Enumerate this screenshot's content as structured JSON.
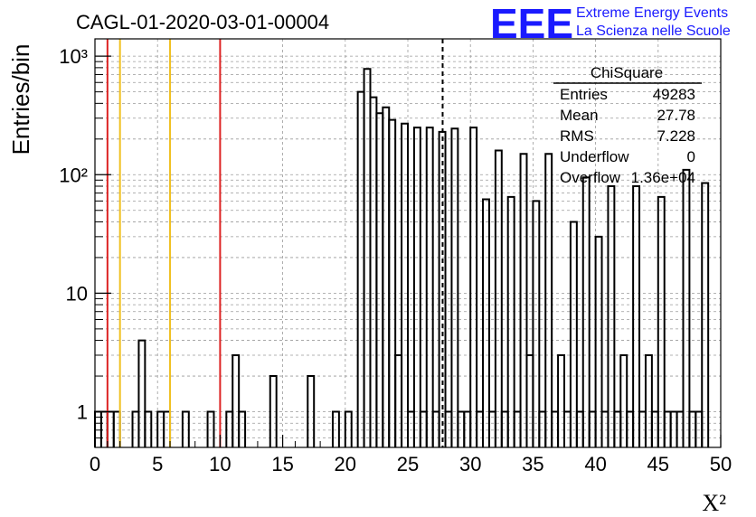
{
  "title": "CAGL-01-2020-03-01-00004",
  "logo": {
    "mark": "EEE",
    "line1": "Extreme Energy Events",
    "line2": "La Scienza nelle Scuole",
    "color": "#1a1aff"
  },
  "stats_box": {
    "title": "ChiSquare",
    "rows": [
      {
        "label": "Entries",
        "value": "49283"
      },
      {
        "label": "Mean",
        "value": "27.78"
      },
      {
        "label": "RMS",
        "value": "7.228"
      },
      {
        "label": "Underflow",
        "value": "0"
      },
      {
        "label": "Overflow",
        "value": "1.36e+04"
      }
    ]
  },
  "chart_data": {
    "type": "histogram",
    "title": "CAGL-01-2020-03-01-00004",
    "xlabel": "X²",
    "ylabel": "Entries/bin",
    "xlim": [
      0,
      50
    ],
    "ylim": [
      0.5,
      1400
    ],
    "yscale": "log",
    "bin_width": 0.5,
    "x_ticks": [
      0,
      5,
      10,
      15,
      20,
      25,
      30,
      35,
      40,
      45,
      50
    ],
    "y_ticks": [
      {
        "value": 1,
        "label": "1"
      },
      {
        "value": 10,
        "label": "10"
      },
      {
        "value": 100,
        "label": "10²"
      },
      {
        "value": 1000,
        "label": "10³"
      }
    ],
    "grid": true,
    "bins": [
      {
        "x": 0.0,
        "y": 1
      },
      {
        "x": 0.5,
        "y": 1
      },
      {
        "x": 1.0,
        "y": 1
      },
      {
        "x": 1.5,
        "y": 1
      },
      {
        "x": 3.0,
        "y": 1
      },
      {
        "x": 3.5,
        "y": 4
      },
      {
        "x": 4.0,
        "y": 1
      },
      {
        "x": 5.0,
        "y": 1
      },
      {
        "x": 5.5,
        "y": 1
      },
      {
        "x": 7.0,
        "y": 1
      },
      {
        "x": 9.0,
        "y": 1
      },
      {
        "x": 10.5,
        "y": 1
      },
      {
        "x": 11.0,
        "y": 3
      },
      {
        "x": 11.5,
        "y": 1
      },
      {
        "x": 14.0,
        "y": 2
      },
      {
        "x": 17.0,
        "y": 2
      },
      {
        "x": 19.0,
        "y": 1
      },
      {
        "x": 20.0,
        "y": 1
      },
      {
        "x": 21.0,
        "y": 500
      },
      {
        "x": 21.5,
        "y": 780
      },
      {
        "x": 22.0,
        "y": 450
      },
      {
        "x": 22.5,
        "y": 330
      },
      {
        "x": 23.0,
        "y": 370
      },
      {
        "x": 23.5,
        "y": 290
      },
      {
        "x": 24.0,
        "y": 3
      },
      {
        "x": 24.5,
        "y": 270
      },
      {
        "x": 25.0,
        "y": 1
      },
      {
        "x": 25.5,
        "y": 250
      },
      {
        "x": 26.0,
        "y": 1
      },
      {
        "x": 26.5,
        "y": 250
      },
      {
        "x": 27.0,
        "y": 1
      },
      {
        "x": 27.5,
        "y": 230
      },
      {
        "x": 28.0,
        "y": 1
      },
      {
        "x": 28.5,
        "y": 245
      },
      {
        "x": 29.0,
        "y": 1
      },
      {
        "x": 29.5,
        "y": 1
      },
      {
        "x": 30.0,
        "y": 250
      },
      {
        "x": 30.5,
        "y": 1
      },
      {
        "x": 31.0,
        "y": 62
      },
      {
        "x": 31.5,
        "y": 1
      },
      {
        "x": 32.0,
        "y": 160
      },
      {
        "x": 32.5,
        "y": 1
      },
      {
        "x": 33.0,
        "y": 65
      },
      {
        "x": 33.5,
        "y": 1
      },
      {
        "x": 34.0,
        "y": 150
      },
      {
        "x": 34.5,
        "y": 3
      },
      {
        "x": 35.0,
        "y": 60
      },
      {
        "x": 35.5,
        "y": 1
      },
      {
        "x": 36.0,
        "y": 150
      },
      {
        "x": 36.5,
        "y": 1
      },
      {
        "x": 37.0,
        "y": 3
      },
      {
        "x": 37.5,
        "y": 1
      },
      {
        "x": 38.0,
        "y": 40
      },
      {
        "x": 38.5,
        "y": 1
      },
      {
        "x": 39.0,
        "y": 95
      },
      {
        "x": 39.5,
        "y": 1
      },
      {
        "x": 40.0,
        "y": 30
      },
      {
        "x": 40.5,
        "y": 1
      },
      {
        "x": 41.0,
        "y": 80
      },
      {
        "x": 41.5,
        "y": 1
      },
      {
        "x": 42.0,
        "y": 3
      },
      {
        "x": 42.5,
        "y": 1
      },
      {
        "x": 43.0,
        "y": 80
      },
      {
        "x": 43.5,
        "y": 1
      },
      {
        "x": 44.0,
        "y": 3
      },
      {
        "x": 44.5,
        "y": 1
      },
      {
        "x": 45.0,
        "y": 65
      },
      {
        "x": 45.5,
        "y": 1
      },
      {
        "x": 46.0,
        "y": 1
      },
      {
        "x": 46.5,
        "y": 1
      },
      {
        "x": 47.0,
        "y": 110
      },
      {
        "x": 47.5,
        "y": 1
      },
      {
        "x": 48.0,
        "y": 1
      },
      {
        "x": 48.5,
        "y": 85
      }
    ],
    "vertical_lines": [
      {
        "x": 1,
        "color": "#dd2222",
        "style": "solid"
      },
      {
        "x": 2,
        "color": "#f0c020",
        "style": "solid"
      },
      {
        "x": 6,
        "color": "#f0c020",
        "style": "solid"
      },
      {
        "x": 10,
        "color": "#dd2222",
        "style": "solid"
      },
      {
        "x": 27.78,
        "color": "#000000",
        "style": "dashed"
      }
    ]
  }
}
